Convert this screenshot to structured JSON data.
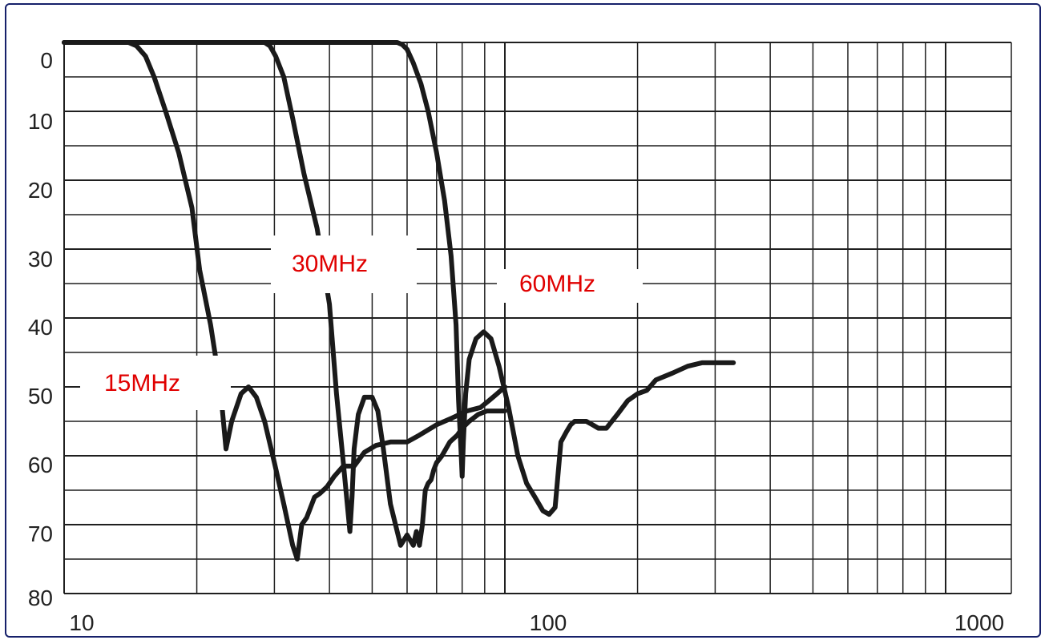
{
  "chart_data": {
    "type": "line",
    "title": "",
    "xlabel": "",
    "ylabel": "",
    "x_scale": "log",
    "xlim": [
      10,
      1200
    ],
    "ylim": [
      0,
      80
    ],
    "y_axis_inverted": true,
    "grid": true,
    "x_ticks": [
      "10",
      "100",
      "1000"
    ],
    "y_ticks": [
      "0",
      "10",
      "20",
      "30",
      "40",
      "50",
      "60",
      "70",
      "80"
    ],
    "annotations": [
      "30MHz",
      "60MHz",
      "15MHz"
    ],
    "annotation_color": "#e00000",
    "line_color": "#1a1a1a",
    "series": [
      {
        "x": [
          10,
          14,
          14.6,
          15.3,
          16,
          17,
          18.2,
          19.5,
          20.3,
          21.5,
          22.6,
          23.3,
          24,
          25.2,
          26.2,
          27.3,
          28.5,
          30,
          31.5,
          33,
          33.8,
          34.6,
          35.5,
          37,
          38,
          39.5,
          41,
          43,
          45.5,
          48,
          51,
          55,
          60,
          64,
          70,
          76,
          82,
          88,
          92,
          96,
          100
        ],
        "y": [
          0,
          0,
          0.5,
          2,
          5,
          10,
          16,
          24,
          33,
          41,
          50,
          59,
          55,
          51,
          50,
          51.5,
          55,
          61,
          67,
          73,
          75,
          70,
          69,
          66,
          65.5,
          64.5,
          63,
          61.5,
          61.5,
          59.5,
          58.5,
          58,
          58,
          57,
          55.5,
          54.5,
          53.5,
          53,
          52,
          51,
          50
        ]
      },
      {
        "x": [
          10,
          28.5,
          29.3,
          30.2,
          31.5,
          33,
          35,
          37.5,
          40,
          41.5,
          43,
          44.5,
          45,
          45.5,
          46.5,
          48,
          50,
          51.5,
          53,
          55,
          58,
          60,
          62,
          63,
          64,
          65,
          66,
          67,
          68,
          69,
          70,
          72,
          75,
          78,
          80,
          83,
          87,
          91,
          95,
          100
        ],
        "y": [
          0,
          0,
          0.5,
          2,
          5,
          11,
          19,
          27,
          38,
          51,
          61,
          71,
          66,
          59,
          54,
          51.5,
          51.5,
          53.5,
          59,
          67,
          73,
          71.5,
          73,
          71,
          73,
          70,
          65,
          64,
          63.5,
          62,
          61,
          60,
          58,
          57,
          56,
          55,
          54,
          53.5,
          53.5,
          53.5
        ]
      },
      {
        "x": [
          10,
          57,
          58.5,
          60,
          62,
          64.5,
          67,
          70,
          73,
          75.5,
          77.5,
          78.5,
          79.5,
          80,
          80.5,
          81.5,
          83,
          86,
          89.5,
          93,
          97,
          102,
          107,
          112,
          117,
          122,
          126,
          130,
          134,
          138,
          141,
          144,
          148,
          153,
          158,
          163,
          170,
          180,
          190,
          200,
          210,
          220,
          240,
          260,
          280,
          300,
          330
        ],
        "y": [
          0,
          0,
          0.3,
          1,
          3,
          6,
          10,
          16,
          23,
          31,
          41,
          52,
          59,
          63,
          58,
          51,
          46,
          43,
          42,
          43,
          47,
          53,
          60,
          64,
          66,
          68,
          68.5,
          67.5,
          58,
          56.5,
          55.5,
          55,
          55,
          55,
          55.5,
          56,
          56,
          54,
          52,
          51,
          50.5,
          49,
          48,
          47,
          46.5,
          46.5,
          46.5
        ]
      }
    ]
  }
}
